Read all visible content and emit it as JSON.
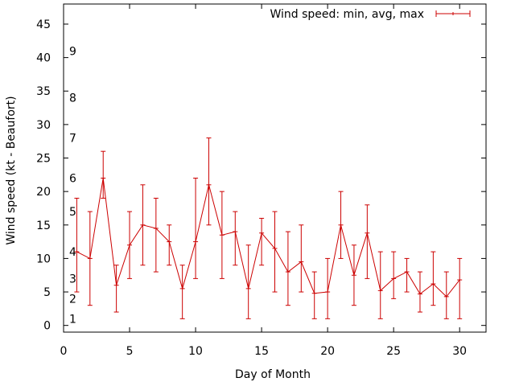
{
  "chart_data": {
    "type": "line",
    "title": "",
    "xlabel": "Day of Month",
    "ylabel": "Wind speed (kt - Beaufort)",
    "xlim": [
      0,
      32
    ],
    "ylim": [
      -1,
      48
    ],
    "xticks": [
      0,
      5,
      10,
      15,
      20,
      25,
      30
    ],
    "yticks": [
      0,
      5,
      10,
      15,
      20,
      25,
      30,
      35,
      40,
      45
    ],
    "grid": false,
    "legend_position": "top-right",
    "series": [
      {
        "name": "Wind speed: min, avg, max",
        "color": "#cc0000",
        "style": "line-with-errorbars",
        "points": [
          {
            "x": 1,
            "avg": 11,
            "min": 5,
            "max": 19
          },
          {
            "x": 2,
            "avg": 10,
            "min": 3,
            "max": 17
          },
          {
            "x": 3,
            "avg": 22,
            "min": 19,
            "max": 26
          },
          {
            "x": 4,
            "avg": 6,
            "min": 2,
            "max": 9
          },
          {
            "x": 5,
            "avg": 12,
            "min": 7,
            "max": 17
          },
          {
            "x": 6,
            "avg": 15,
            "min": 9,
            "max": 21
          },
          {
            "x": 7,
            "avg": 14.5,
            "min": 8,
            "max": 19
          },
          {
            "x": 8,
            "avg": 12.5,
            "min": 9,
            "max": 15
          },
          {
            "x": 9,
            "avg": 5.5,
            "min": 1,
            "max": 9
          },
          {
            "x": 10,
            "avg": 12.5,
            "min": 7,
            "max": 22
          },
          {
            "x": 11,
            "avg": 21,
            "min": 15,
            "max": 28
          },
          {
            "x": 12,
            "avg": 13.5,
            "min": 7,
            "max": 20
          },
          {
            "x": 13,
            "avg": 14,
            "min": 9,
            "max": 17
          },
          {
            "x": 14,
            "avg": 5.5,
            "min": 1,
            "max": 12
          },
          {
            "x": 15,
            "avg": 13.8,
            "min": 9,
            "max": 16
          },
          {
            "x": 16,
            "avg": 11.5,
            "min": 5,
            "max": 17
          },
          {
            "x": 17,
            "avg": 8,
            "min": 3,
            "max": 14
          },
          {
            "x": 18,
            "avg": 9.5,
            "min": 5,
            "max": 15
          },
          {
            "x": 19,
            "avg": 4.8,
            "min": 1,
            "max": 8
          },
          {
            "x": 20,
            "avg": 5,
            "min": 1,
            "max": 10
          },
          {
            "x": 21,
            "avg": 15,
            "min": 10,
            "max": 20
          },
          {
            "x": 22,
            "avg": 7.5,
            "min": 3,
            "max": 12
          },
          {
            "x": 23,
            "avg": 13.8,
            "min": 7,
            "max": 18
          },
          {
            "x": 24,
            "avg": 5.2,
            "min": 1,
            "max": 11
          },
          {
            "x": 25,
            "avg": 7,
            "min": 4,
            "max": 11
          },
          {
            "x": 26,
            "avg": 8,
            "min": 5,
            "max": 10
          },
          {
            "x": 27,
            "avg": 4.7,
            "min": 2,
            "max": 8
          },
          {
            "x": 28,
            "avg": 6.2,
            "min": 3,
            "max": 11
          },
          {
            "x": 29,
            "avg": 4.3,
            "min": 1,
            "max": 8
          },
          {
            "x": 30,
            "avg": 6.8,
            "min": 1,
            "max": 10
          }
        ]
      }
    ],
    "annotations": {
      "beaufort_scale": [
        {
          "label": "1",
          "y": 1
        },
        {
          "label": "2",
          "y": 4
        },
        {
          "label": "3",
          "y": 7
        },
        {
          "label": "4",
          "y": 11
        },
        {
          "label": "5",
          "y": 17
        },
        {
          "label": "6",
          "y": 22
        },
        {
          "label": "7",
          "y": 28
        },
        {
          "label": "8",
          "y": 34
        },
        {
          "label": "9",
          "y": 41
        }
      ]
    }
  }
}
